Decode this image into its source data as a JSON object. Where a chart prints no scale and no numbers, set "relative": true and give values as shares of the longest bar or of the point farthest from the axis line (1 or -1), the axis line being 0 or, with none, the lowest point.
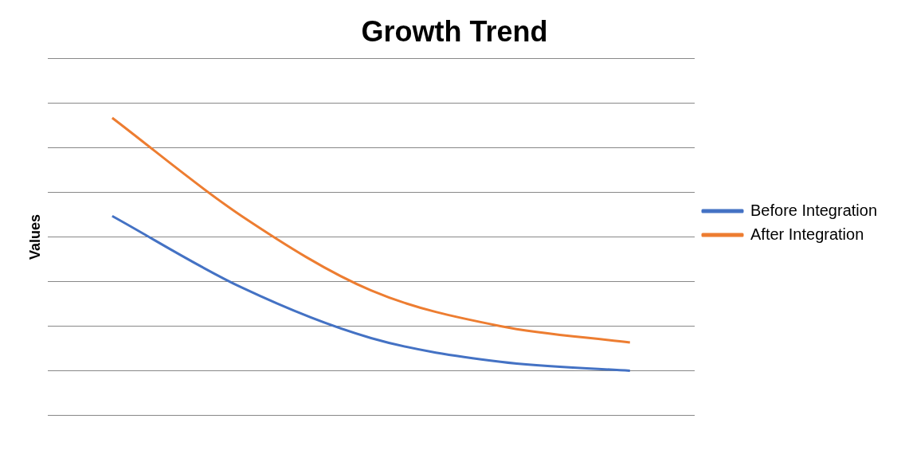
{
  "chart_data": {
    "type": "line",
    "title": "Growth Trend",
    "ylabel": "Values",
    "relative": true,
    "grid": "y",
    "legend": "right",
    "marker": "none",
    "line_style": "solid",
    "categories": [
      null,
      null,
      null,
      null,
      null
    ],
    "series": [
      {
        "name": "Before Integration",
        "color": "#4472c4",
        "values": [
          0.67,
          0.43,
          0.26,
          0.18,
          0.15
        ]
      },
      {
        "name": "After Integration",
        "color": "#ed7d31",
        "values": [
          1,
          0.67,
          0.42,
          0.3,
          0.245
        ]
      }
    ]
  }
}
